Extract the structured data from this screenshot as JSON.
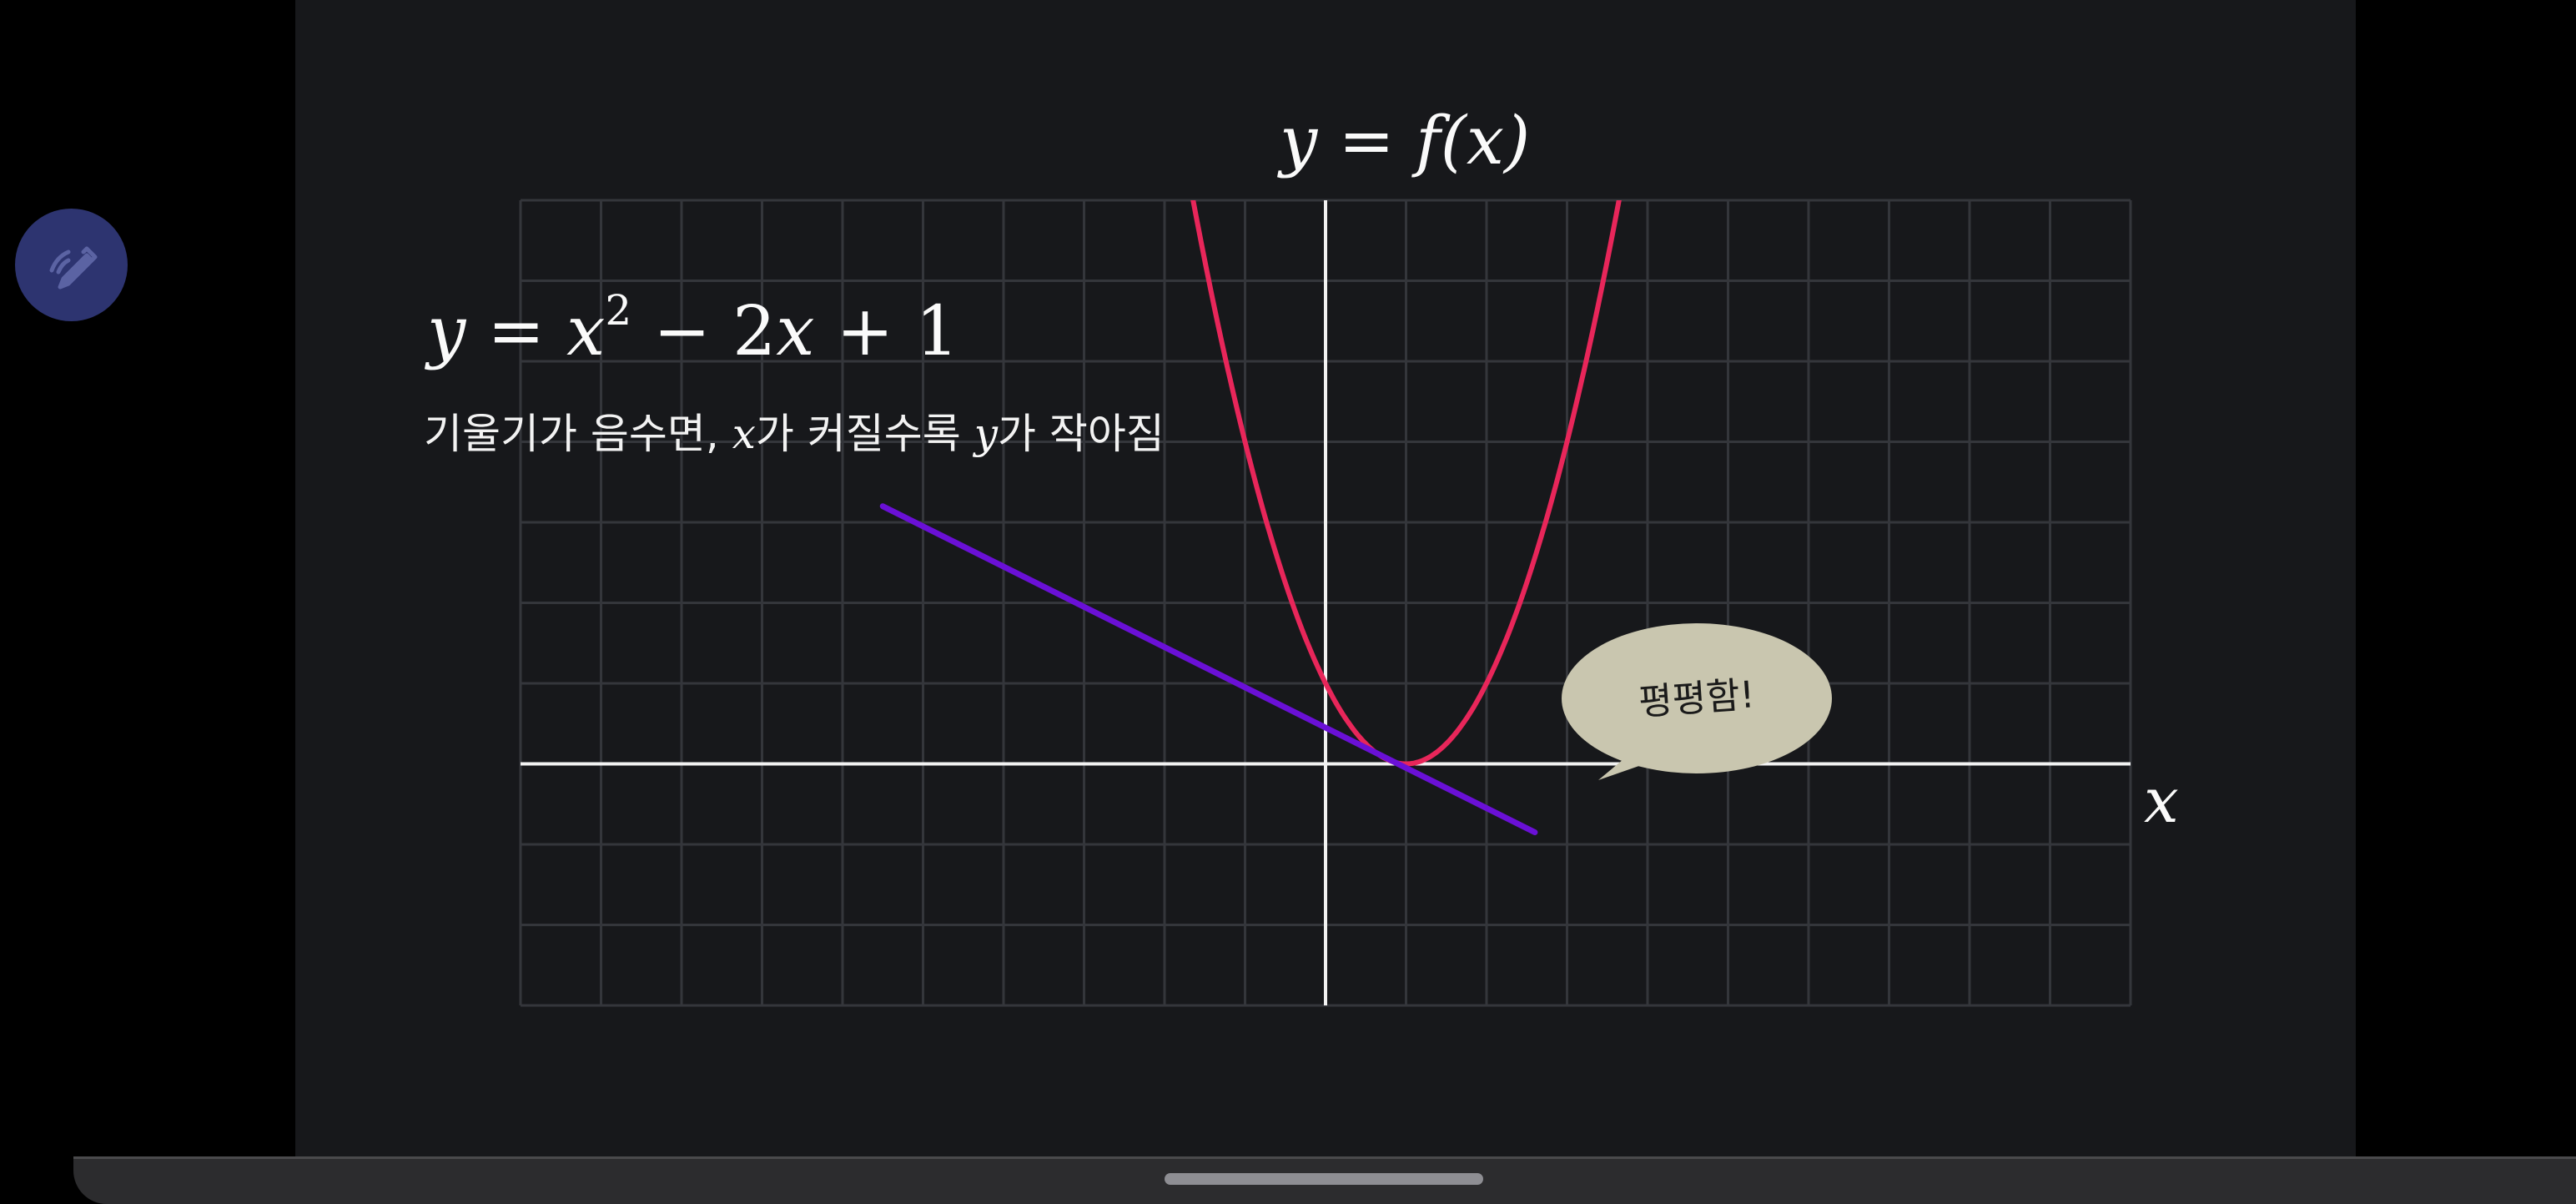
{
  "chart_data": {
    "type": "line",
    "title": "y = f(x)",
    "xlabel": "x",
    "ylabel": "",
    "xlim": [
      -10,
      10
    ],
    "ylim": [
      -3,
      7
    ],
    "grid": true,
    "series": [
      {
        "color": "#e8265a",
        "x": [
          -1.7,
          -1,
          0,
          1,
          2,
          3,
          3.7
        ],
        "y": [
          7.29,
          4,
          1,
          0,
          1,
          4,
          7.29
        ]
      },
      {
        "color": "#6a10d6",
        "x": [
          -5.5,
          2.6
        ],
        "y": [
          3.2,
          -0.85
        ]
      }
    ],
    "annotations": {
      "equation": {
        "lhs": "y",
        "eq": " = ",
        "x1": "x",
        "exp": "2",
        "mid": " − 2",
        "x2": "x",
        "tail": " + 1"
      },
      "description": {
        "part1": "기울기가 음수면, ",
        "var_x": "x",
        "part2": "가 커질수록 ",
        "var_y": "y",
        "part3": "가 작아짐"
      },
      "bubble": "평평함!"
    }
  },
  "icons": {
    "pen": "pen-icon"
  },
  "colors": {
    "background": "#17181b",
    "grid": "#34363b",
    "axis": "#f2f2f2",
    "curve": "#e8265a",
    "tangent": "#6a10d6",
    "bubble": "#c9c6af",
    "pen_button": "#2d3470"
  }
}
